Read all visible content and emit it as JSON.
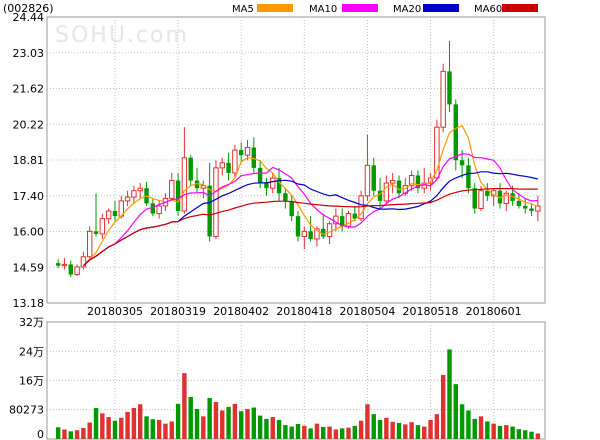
{
  "header": {
    "code": "(002826)",
    "watermark": "SOHU.com"
  },
  "legend": [
    {
      "label": "MA5",
      "color": "#ff9900"
    },
    {
      "label": "MA10",
      "color": "#ff00ff"
    },
    {
      "label": "MA20",
      "color": "#0000cc"
    },
    {
      "label": "MA60",
      "color": "#cc0000"
    }
  ],
  "colors": {
    "up": "#e03131",
    "down": "#009900",
    "grid": "#c0c0c0",
    "border": "#999999"
  },
  "chart_data": [
    {
      "type": "candlestick",
      "title": "",
      "y_ticks": [
        "24.44",
        "23.03",
        "21.62",
        "20.22",
        "18.81",
        "17.40",
        "16.00",
        "14.59",
        "13.18"
      ],
      "ylim": [
        13.18,
        24.44
      ],
      "x_ticks": [
        "20180305",
        "20180319",
        "20180402",
        "20180418",
        "20180504",
        "20180518",
        "20180601"
      ],
      "x_tick_index": [
        9,
        19,
        29,
        39,
        49,
        59,
        69
      ],
      "ohlc": [
        [
          14.75,
          14.9,
          14.55,
          14.65
        ],
        [
          14.65,
          14.95,
          14.5,
          14.7
        ],
        [
          14.7,
          14.85,
          14.2,
          14.3
        ],
        [
          14.3,
          14.7,
          14.25,
          14.6
        ],
        [
          14.6,
          15.2,
          14.5,
          15.0
        ],
        [
          15.0,
          16.2,
          14.95,
          16.0
        ],
        [
          16.0,
          17.5,
          15.8,
          15.9
        ],
        [
          15.9,
          16.7,
          15.7,
          16.5
        ],
        [
          16.5,
          16.9,
          16.3,
          16.8
        ],
        [
          16.8,
          17.2,
          16.4,
          16.6
        ],
        [
          16.6,
          17.4,
          16.5,
          17.2
        ],
        [
          17.2,
          17.6,
          17.0,
          17.35
        ],
        [
          17.35,
          17.8,
          17.1,
          17.6
        ],
        [
          17.6,
          17.9,
          17.3,
          17.7
        ],
        [
          17.7,
          17.95,
          17.0,
          17.1
        ],
        [
          17.1,
          17.3,
          16.6,
          16.7
        ],
        [
          16.7,
          17.2,
          16.5,
          17.0
        ],
        [
          17.0,
          17.5,
          16.8,
          17.3
        ],
        [
          17.3,
          18.3,
          17.2,
          18.0
        ],
        [
          18.0,
          18.3,
          16.6,
          16.8
        ],
        [
          16.8,
          20.1,
          16.7,
          18.9
        ],
        [
          18.9,
          19.0,
          17.8,
          18.0
        ],
        [
          18.0,
          18.5,
          17.5,
          17.7
        ],
        [
          17.7,
          18.0,
          17.3,
          17.8
        ],
        [
          17.8,
          18.7,
          15.6,
          15.8
        ],
        [
          15.8,
          18.8,
          15.7,
          18.5
        ],
        [
          18.5,
          18.9,
          18.2,
          18.7
        ],
        [
          18.7,
          19.1,
          18.0,
          18.3
        ],
        [
          18.3,
          19.4,
          18.1,
          19.2
        ],
        [
          19.2,
          19.5,
          18.7,
          19.0
        ],
        [
          19.0,
          19.6,
          18.8,
          19.3
        ],
        [
          19.3,
          19.7,
          18.3,
          18.5
        ],
        [
          18.5,
          18.8,
          17.7,
          17.9
        ],
        [
          17.9,
          18.1,
          17.4,
          17.7
        ],
        [
          17.7,
          18.3,
          17.5,
          18.1
        ],
        [
          18.1,
          18.5,
          17.2,
          17.5
        ],
        [
          17.5,
          17.7,
          16.9,
          17.2
        ],
        [
          17.2,
          17.4,
          16.4,
          16.6
        ],
        [
          16.6,
          16.8,
          15.6,
          15.8
        ],
        [
          15.8,
          16.2,
          15.3,
          16.0
        ],
        [
          16.0,
          16.6,
          15.6,
          15.7
        ],
        [
          15.7,
          16.2,
          15.4,
          16.1
        ],
        [
          16.1,
          16.7,
          15.7,
          15.8
        ],
        [
          15.8,
          16.4,
          15.5,
          16.3
        ],
        [
          16.3,
          16.9,
          16.0,
          16.6
        ],
        [
          16.6,
          16.9,
          16.0,
          16.2
        ],
        [
          16.2,
          16.8,
          16.1,
          16.7
        ],
        [
          16.7,
          17.0,
          16.4,
          16.5
        ],
        [
          16.5,
          17.6,
          16.4,
          17.4
        ],
        [
          17.4,
          19.8,
          17.2,
          18.6
        ],
        [
          18.6,
          18.9,
          17.4,
          17.6
        ],
        [
          17.6,
          18.1,
          16.9,
          17.2
        ],
        [
          17.2,
          18.2,
          17.1,
          17.9
        ],
        [
          17.9,
          18.3,
          17.5,
          18.0
        ],
        [
          18.0,
          18.2,
          17.3,
          17.5
        ],
        [
          17.5,
          18.1,
          17.4,
          17.8
        ],
        [
          17.8,
          18.4,
          17.6,
          18.2
        ],
        [
          18.2,
          18.4,
          17.5,
          17.7
        ],
        [
          17.7,
          18.5,
          17.5,
          17.9
        ],
        [
          17.9,
          18.3,
          17.6,
          18.1
        ],
        [
          18.1,
          20.4,
          18.0,
          20.1
        ],
        [
          20.1,
          22.6,
          19.9,
          22.3
        ],
        [
          22.3,
          23.5,
          20.7,
          21.0
        ],
        [
          21.0,
          21.2,
          18.4,
          18.8
        ],
        [
          18.8,
          19.2,
          18.1,
          18.6
        ],
        [
          18.6,
          18.9,
          17.5,
          17.7
        ],
        [
          17.7,
          17.9,
          16.7,
          16.9
        ],
        [
          16.9,
          17.8,
          16.8,
          17.6
        ],
        [
          17.6,
          17.9,
          17.2,
          17.4
        ],
        [
          17.4,
          17.7,
          17.0,
          17.6
        ],
        [
          17.6,
          17.9,
          16.9,
          17.1
        ],
        [
          17.1,
          17.6,
          16.8,
          17.5
        ],
        [
          17.5,
          17.8,
          17.0,
          17.2
        ],
        [
          17.2,
          17.5,
          16.9,
          17.0
        ],
        [
          17.0,
          17.3,
          16.7,
          16.9
        ],
        [
          16.9,
          17.1,
          16.6,
          16.8
        ],
        [
          16.8,
          17.4,
          16.4,
          17.0
        ]
      ]
    },
    {
      "type": "bar",
      "title": "",
      "y_ticks": [
        "32万",
        "24万",
        "16万",
        "80273",
        "0"
      ],
      "ylim": [
        0,
        320000
      ],
      "values": [
        32000,
        26000,
        21000,
        24000,
        30000,
        45000,
        85000,
        70000,
        60000,
        50000,
        58000,
        74000,
        85000,
        95000,
        62000,
        54000,
        52000,
        42000,
        48000,
        96000,
        180000,
        115000,
        82000,
        62000,
        112000,
        101000,
        78000,
        88000,
        96000,
        76000,
        82000,
        86000,
        64000,
        55000,
        60000,
        52000,
        38000,
        34000,
        41000,
        36000,
        29000,
        42000,
        33000,
        34000,
        26000,
        29000,
        31000,
        36000,
        50000,
        95000,
        68000,
        52000,
        58000,
        47000,
        44000,
        40000,
        46000,
        38000,
        34000,
        52000,
        68000,
        175000,
        245000,
        150000,
        95000,
        78000,
        55000,
        62000,
        48000,
        42000,
        36000,
        38000,
        34000,
        27000,
        24000,
        20000,
        15000
      ]
    }
  ]
}
